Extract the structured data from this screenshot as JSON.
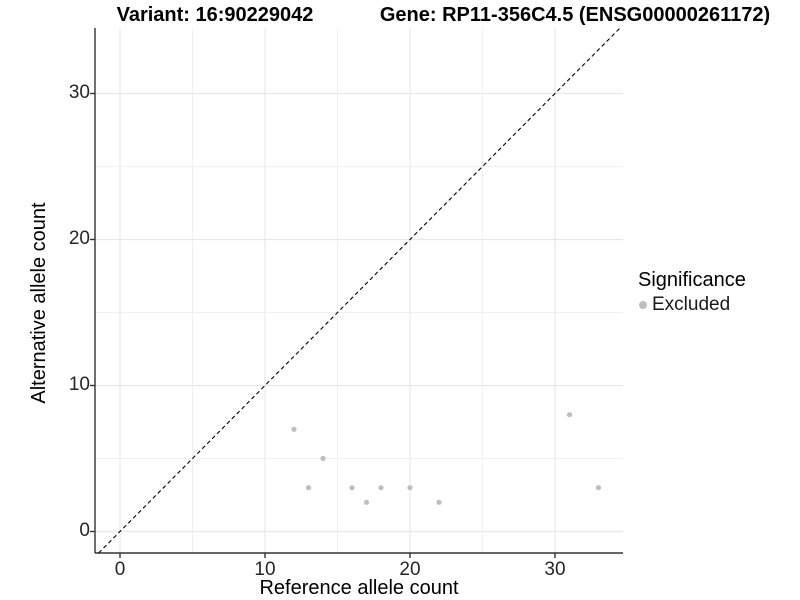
{
  "titles": {
    "variant": "Variant: 16:90229042",
    "gene": "Gene: RP11-356C4.5 (ENSG00000261172)"
  },
  "chart_data": {
    "type": "scatter",
    "title_left": "Variant: 16:90229042",
    "title_right": "Gene: RP11-356C4.5 (ENSG00000261172)",
    "xlabel": "Reference allele count",
    "ylabel": "Alternative allele count",
    "xlim": [
      -1.7,
      34.7
    ],
    "ylim": [
      -1.5,
      34.5
    ],
    "x_ticks": [
      0,
      10,
      20,
      30
    ],
    "y_ticks": [
      0,
      10,
      20,
      30
    ],
    "x_minor_gridlines": [
      5,
      15,
      25
    ],
    "y_minor_gridlines": [
      5,
      15,
      25
    ],
    "grid": true,
    "reference_line": {
      "equation": "y = x",
      "style": "dashed",
      "color": "#000000"
    },
    "series": [
      {
        "name": "Excluded",
        "color": "#bebebe",
        "points": [
          {
            "x": 12,
            "y": 7
          },
          {
            "x": 13,
            "y": 3
          },
          {
            "x": 14,
            "y": 5
          },
          {
            "x": 16,
            "y": 3
          },
          {
            "x": 17,
            "y": 2
          },
          {
            "x": 18,
            "y": 3
          },
          {
            "x": 20,
            "y": 3
          },
          {
            "x": 22,
            "y": 2
          },
          {
            "x": 31,
            "y": 8
          },
          {
            "x": 33,
            "y": 3
          }
        ]
      }
    ],
    "legend": {
      "title": "Significance",
      "position": "right",
      "items": [
        {
          "label": "Excluded",
          "color": "#bebebe"
        }
      ]
    },
    "colors": {
      "major_gridline": "#e8e8e8",
      "minor_gridline": "#f1f1f1",
      "axis_line": "#333333",
      "point": "#bebebe",
      "diagonal": "#000000"
    }
  }
}
